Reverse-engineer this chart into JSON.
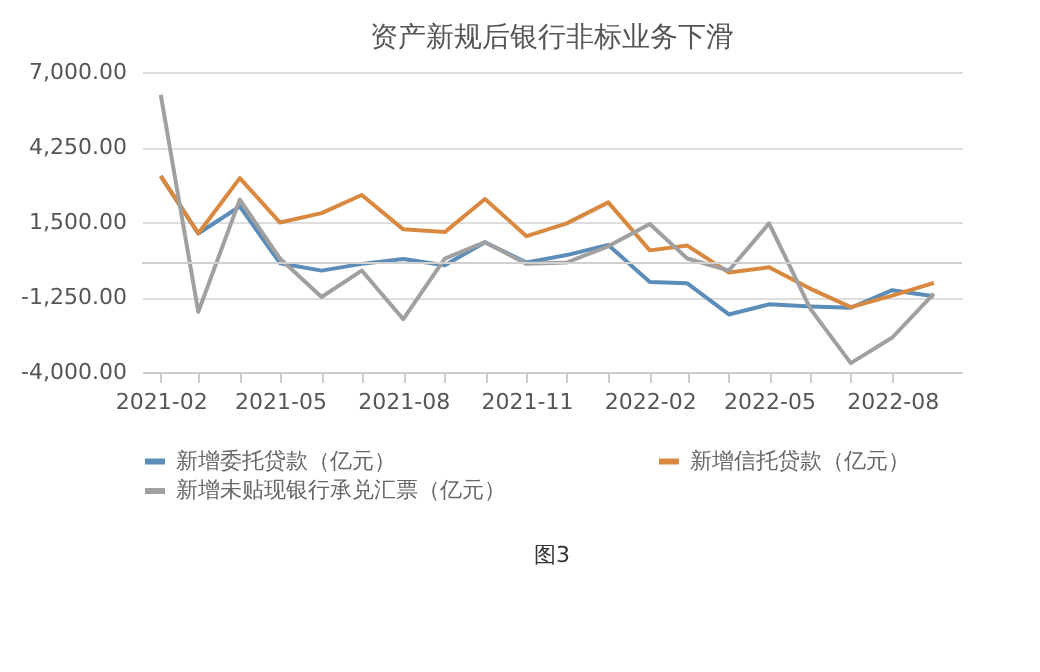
{
  "chart_data": {
    "type": "line",
    "title": "资产新规后银行非标业务下滑",
    "x": [
      "2021-02",
      "2021-03",
      "2021-04",
      "2021-05",
      "2021-06",
      "2021-07",
      "2021-08",
      "2021-09",
      "2021-10",
      "2021-11",
      "2021-12",
      "2022-01",
      "2022-02",
      "2022-03",
      "2022-04",
      "2022-05",
      "2022-06",
      "2022-07",
      "2022-08",
      "2022-09"
    ],
    "series": [
      {
        "name": "新增委托贷款（亿元）",
        "color": "#5b8db8",
        "values": [
          3185,
          1080,
          2070,
          -10,
          -283,
          -35,
          140,
          -85,
          758,
          15,
          287,
          660,
          -700,
          -750,
          -1890,
          -1520,
          -1595,
          -1645,
          -1000,
          -1225
        ]
      },
      {
        "name": "新增信托贷款（亿元）",
        "color": "#d9893f",
        "values": [
          3185,
          1080,
          3110,
          1480,
          1825,
          2490,
          1230,
          1130,
          2345,
          980,
          1450,
          2220,
          460,
          635,
          -355,
          -160,
          -950,
          -1620,
          -1200,
          -730
        ]
      },
      {
        "name": "新增未贴现银行承兑汇票（亿元）",
        "color": "#a0a0a0",
        "values": [
          6160,
          -1795,
          2320,
          160,
          -1250,
          -280,
          -2065,
          160,
          760,
          -35,
          15,
          610,
          1425,
          160,
          -280,
          1450,
          -1695,
          -3675,
          -2735,
          -1125
        ]
      }
    ],
    "xlim": [
      "2021-01-18",
      "2022-09-22"
    ],
    "xticks": [
      {
        "value": "2021-02",
        "label": "2021-02"
      },
      {
        "value": "2021-03",
        "label": null
      },
      {
        "value": "2021-04",
        "label": null
      },
      {
        "value": "2021-05",
        "label": "2021-05"
      },
      {
        "value": "2021-06",
        "label": null
      },
      {
        "value": "2021-07",
        "label": null
      },
      {
        "value": "2021-08",
        "label": "2021-08"
      },
      {
        "value": "2021-09",
        "label": null
      },
      {
        "value": "2021-10",
        "label": null
      },
      {
        "value": "2021-11",
        "label": "2021-11"
      },
      {
        "value": "2021-12",
        "label": null
      },
      {
        "value": "2022-01",
        "label": null
      },
      {
        "value": "2022-02",
        "label": "2022-02"
      },
      {
        "value": "2022-03",
        "label": null
      },
      {
        "value": "2022-04",
        "label": null
      },
      {
        "value": "2022-05",
        "label": "2022-05"
      },
      {
        "value": "2022-06",
        "label": null
      },
      {
        "value": "2022-07",
        "label": null
      },
      {
        "value": "2022-08",
        "label": "2022-08"
      }
    ],
    "ylim": [
      -4000,
      7000
    ],
    "yticks": [
      {
        "value": -4000,
        "label": "-4,000.00"
      },
      {
        "value": -1250,
        "label": "-1,250.00"
      },
      {
        "value": 1500,
        "label": "1,500.00"
      },
      {
        "value": 4250,
        "label": "4,250.00"
      },
      {
        "value": 7000,
        "label": "7,000.00"
      }
    ],
    "ref_lines": [
      {
        "axis": "y",
        "value": 0,
        "label": null,
        "color": "#d0d0d0"
      }
    ],
    "grid": "y",
    "legend": "bottom",
    "marker": "none",
    "line_style": "solid",
    "annotations": [
      "图3"
    ]
  }
}
